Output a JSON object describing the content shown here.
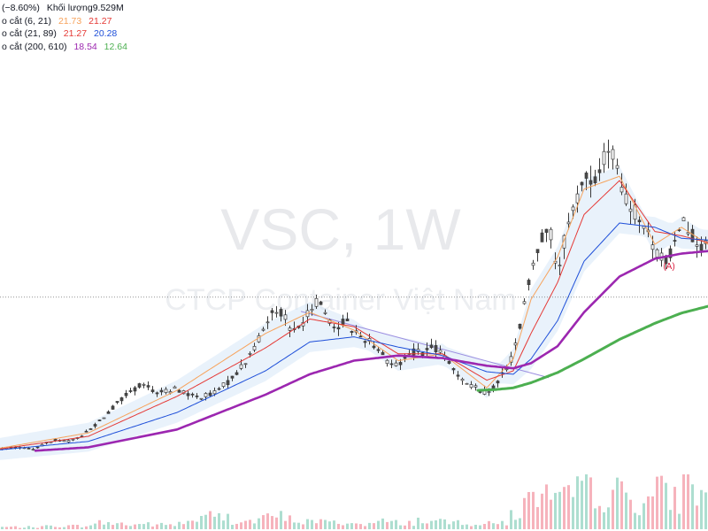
{
  "legend": {
    "header": "(−8.60%)",
    "volume_label": "Khối lượng",
    "volume_value": "9.529M",
    "rows": [
      {
        "label": "o cắt (6, 21)",
        "v1": "21.73",
        "v1_color": "#f7a35c",
        "v2": "21.27",
        "v2_color": "#e53935"
      },
      {
        "label": "o cắt (21, 89)",
        "v1": "21.27",
        "v1_color": "#e53935",
        "v2": "20.28",
        "v2_color": "#1e4fd9"
      },
      {
        "label": "o cắt (200, 610)",
        "v1": "18.54",
        "v1_color": "#9c27b0",
        "v2": "12.64",
        "v2_color": "#4caf50"
      }
    ]
  },
  "watermark": {
    "title": "VSC, 1W",
    "subtitle": "CTCP Container Việt Nam"
  },
  "chart_data": {
    "type": "candlestick",
    "title": "VSC, 1W",
    "subtitle": "CTCP Container Việt Nam",
    "price_range": [
      0,
      50
    ],
    "current_price_line": 21.27,
    "price_path": [
      [
        0,
        3.5
      ],
      [
        4,
        3.6
      ],
      [
        8,
        3.4
      ],
      [
        12,
        4.5
      ],
      [
        16,
        4.3
      ],
      [
        20,
        5.5
      ],
      [
        24,
        7.5
      ],
      [
        28,
        9.5
      ],
      [
        32,
        11
      ],
      [
        36,
        10
      ],
      [
        40,
        10.5
      ],
      [
        44,
        9.5
      ],
      [
        48,
        9.8
      ],
      [
        52,
        11.5
      ],
      [
        56,
        14
      ],
      [
        60,
        18
      ],
      [
        62,
        20
      ],
      [
        64,
        19.5
      ],
      [
        66,
        17
      ],
      [
        68,
        18
      ],
      [
        70,
        19.6
      ],
      [
        72,
        21.2
      ],
      [
        74,
        19
      ],
      [
        76,
        17.5
      ],
      [
        78,
        18.7
      ],
      [
        80,
        17.2
      ],
      [
        82,
        16.5
      ],
      [
        84,
        16
      ],
      [
        86,
        15
      ],
      [
        88,
        13.5
      ],
      [
        90,
        13.2
      ],
      [
        92,
        14.5
      ],
      [
        94,
        15
      ],
      [
        96,
        14.8
      ],
      [
        98,
        15.4
      ],
      [
        100,
        14.5
      ],
      [
        102,
        13
      ],
      [
        104,
        12
      ],
      [
        106,
        11
      ],
      [
        108,
        10.5
      ],
      [
        110,
        10
      ],
      [
        112,
        11
      ],
      [
        114,
        12.5
      ],
      [
        116,
        14.5
      ],
      [
        118,
        19
      ],
      [
        120,
        24
      ],
      [
        122,
        28
      ],
      [
        124,
        30
      ],
      [
        126,
        24
      ],
      [
        128,
        29
      ],
      [
        130,
        32
      ],
      [
        132,
        36
      ],
      [
        134,
        34
      ],
      [
        136,
        37
      ],
      [
        138,
        39
      ],
      [
        140,
        35
      ],
      [
        142,
        32
      ],
      [
        144,
        31
      ],
      [
        146,
        29
      ],
      [
        148,
        27
      ],
      [
        150,
        25.5
      ],
      [
        152,
        26.5
      ],
      [
        154,
        31
      ],
      [
        156,
        29
      ],
      [
        158,
        27.5
      ],
      [
        160,
        27
      ]
    ],
    "series": [
      {
        "name": "o cắt (6, 21) fast",
        "color": "#f7a35c",
        "path": [
          [
            0,
            3.5
          ],
          [
            20,
            5.3
          ],
          [
            40,
            10.3
          ],
          [
            60,
            17
          ],
          [
            70,
            19.5
          ],
          [
            80,
            17.4
          ],
          [
            90,
            13.8
          ],
          [
            100,
            14.6
          ],
          [
            110,
            10.6
          ],
          [
            116,
            14
          ],
          [
            120,
            21
          ],
          [
            126,
            26
          ],
          [
            132,
            34
          ],
          [
            140,
            35.5
          ],
          [
            148,
            27.5
          ],
          [
            154,
            29.5
          ],
          [
            160,
            27.5
          ]
        ]
      },
      {
        "name": "o cắt (6, 21) slow",
        "color": "#e53935",
        "path": [
          [
            0,
            3.4
          ],
          [
            20,
            4.9
          ],
          [
            40,
            9.6
          ],
          [
            60,
            15.3
          ],
          [
            70,
            18.7
          ],
          [
            80,
            17.8
          ],
          [
            90,
            14.6
          ],
          [
            100,
            14.6
          ],
          [
            110,
            11.5
          ],
          [
            116,
            12.6
          ],
          [
            120,
            17
          ],
          [
            126,
            23
          ],
          [
            132,
            31
          ],
          [
            140,
            35
          ],
          [
            148,
            29
          ],
          [
            154,
            28.5
          ],
          [
            160,
            27.7
          ]
        ]
      },
      {
        "name": "o cắt (21, 89) slow",
        "color": "#1e4fd9",
        "path": [
          [
            0,
            3.3
          ],
          [
            20,
            4.3
          ],
          [
            40,
            7.7
          ],
          [
            60,
            12.6
          ],
          [
            70,
            16
          ],
          [
            80,
            16.6
          ],
          [
            90,
            15.4
          ],
          [
            100,
            14.4
          ],
          [
            110,
            12.5
          ],
          [
            116,
            12.2
          ],
          [
            120,
            14
          ],
          [
            126,
            18.5
          ],
          [
            132,
            25.5
          ],
          [
            140,
            30
          ],
          [
            148,
            29.5
          ],
          [
            154,
            28.2
          ],
          [
            160,
            28
          ]
        ]
      },
      {
        "name": "o cắt (200, 610) fast",
        "color": "#9c27b0",
        "path": [
          [
            8,
            3.2
          ],
          [
            20,
            3.6
          ],
          [
            40,
            5.7
          ],
          [
            60,
            9.8
          ],
          [
            70,
            12.2
          ],
          [
            80,
            13.8
          ],
          [
            90,
            14.4
          ],
          [
            100,
            14.1
          ],
          [
            110,
            13.2
          ],
          [
            116,
            12.9
          ],
          [
            120,
            13.5
          ],
          [
            126,
            15.5
          ],
          [
            132,
            19.5
          ],
          [
            140,
            23.7
          ],
          [
            148,
            25.8
          ],
          [
            154,
            26.4
          ],
          [
            160,
            26.7
          ]
        ]
      },
      {
        "name": "o cắt (200, 610) slow",
        "color": "#4caf50",
        "path": [
          [
            108,
            10.3
          ],
          [
            112,
            10.4
          ],
          [
            116,
            10.6
          ],
          [
            120,
            11.2
          ],
          [
            126,
            12.4
          ],
          [
            132,
            14
          ],
          [
            140,
            16.3
          ],
          [
            148,
            18.2
          ],
          [
            154,
            19.4
          ],
          [
            160,
            20.2
          ]
        ]
      }
    ],
    "trendline": [
      [
        68,
        19.6
      ],
      [
        124,
        11.8
      ]
    ],
    "annotations": [
      {
        "text": "(A)",
        "x": 150,
        "y": 24.6
      }
    ],
    "volume": [
      0.2,
      0.2,
      0.2,
      0.3,
      0.3,
      0.3,
      0.4,
      0.6,
      0.5,
      0.4,
      0.5,
      0.4,
      0.4,
      0.6,
      0.9,
      1.2,
      1.1,
      0.8,
      0.7,
      1.0,
      1.2,
      0.9,
      0.7,
      0.8,
      0.6,
      0.6,
      0.5,
      0.5,
      0.7,
      0.6,
      0.6,
      0.8,
      0.7,
      0.6,
      0.7,
      0.5,
      0.5,
      0.6,
      1.4,
      2.5,
      3.2,
      2.4,
      2.8,
      4.0,
      3.5,
      2.8,
      3.3,
      2.5,
      2.9,
      3.4,
      2.7,
      4.5,
      3.0
    ]
  }
}
